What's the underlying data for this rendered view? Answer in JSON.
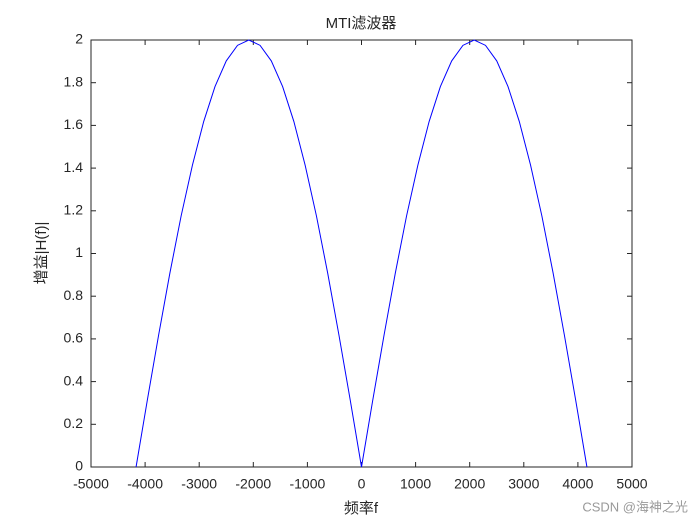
{
  "chart_data": {
    "type": "line",
    "title": "MTI滤波器",
    "x_label": "频率f",
    "y_label": "增益|H(f)|",
    "x": [
      -4167,
      -3959,
      -3750,
      -3542,
      -3334,
      -3125,
      -2917,
      -2708,
      -2500,
      -2292,
      -2083,
      -1875,
      -1667,
      -1458,
      -1250,
      -1042,
      -833,
      -625,
      -417,
      -208,
      0,
      208,
      417,
      625,
      833,
      1042,
      1250,
      1458,
      1667,
      1875,
      2083,
      2292,
      2500,
      2708,
      2917,
      3125,
      3334,
      3542,
      3750,
      3959,
      4167
    ],
    "series": [
      {
        "color": "#0000ff",
        "values": [
          0,
          0.313,
          0.618,
          0.908,
          1.176,
          1.414,
          1.618,
          1.782,
          1.902,
          1.975,
          2,
          1.975,
          1.902,
          1.782,
          1.618,
          1.414,
          1.176,
          0.908,
          0.618,
          0.313,
          0,
          0.313,
          0.618,
          0.908,
          1.176,
          1.414,
          1.618,
          1.782,
          1.902,
          1.975,
          2,
          1.975,
          1.902,
          1.782,
          1.618,
          1.414,
          1.176,
          0.908,
          0.618,
          0.313,
          0
        ]
      }
    ],
    "xlim": [
      -5000,
      5000
    ],
    "xticks": [
      -5000,
      -4000,
      -3000,
      -2000,
      -1000,
      0,
      1000,
      2000,
      3000,
      4000,
      5000
    ],
    "ylim": [
      0,
      2
    ],
    "yticks": [
      0,
      0.2,
      0.4,
      0.6,
      0.8,
      1,
      1.2,
      1.4,
      1.6,
      1.8,
      2
    ],
    "grid": false
  },
  "watermark": "CSDN @海神之光"
}
